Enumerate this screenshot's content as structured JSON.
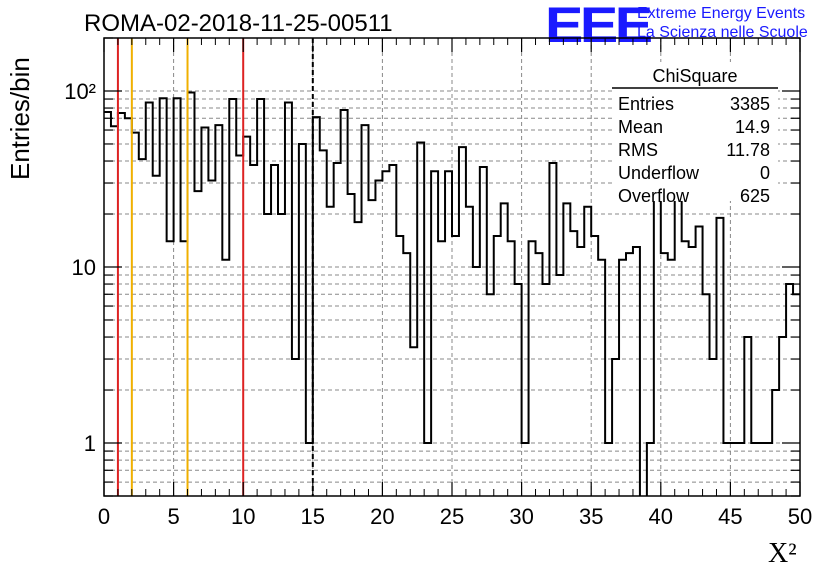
{
  "title": "ROMA-02-2018-11-25-00511",
  "logo": {
    "mark": "EEE",
    "line1": "Extreme Energy Events",
    "line2": "La Scienza nelle Scuole"
  },
  "stats": {
    "header": "ChiSquare",
    "rows": [
      {
        "label": "Entries",
        "value": "3385"
      },
      {
        "label": "Mean",
        "value": "14.9"
      },
      {
        "label": "RMS",
        "value": "11.78"
      },
      {
        "label": "Underflow",
        "value": "0"
      },
      {
        "label": "Overflow",
        "value": "625"
      }
    ]
  },
  "chart_data": {
    "type": "bar",
    "subtype": "histogram",
    "ylabel": "Entries/bin",
    "xlabel": "X²",
    "xlim": [
      0,
      50
    ],
    "ylim": [
      0.5,
      200
    ],
    "yscale": "log",
    "bin_width": 0.5,
    "x_ticks": [
      "0",
      "5",
      "10",
      "15",
      "20",
      "25",
      "30",
      "35",
      "40",
      "45",
      "50"
    ],
    "y_ticks": [
      "1",
      "10",
      "10²"
    ],
    "grid": true,
    "values": [
      76,
      63,
      75,
      70,
      58,
      41,
      86,
      33,
      91,
      14,
      91,
      14,
      98,
      27,
      62,
      31,
      64,
      11,
      90,
      43,
      55,
      38,
      90,
      20,
      38,
      20,
      86,
      3,
      50,
      1,
      71,
      46,
      22,
      39,
      78,
      26,
      18,
      64,
      24,
      31,
      35,
      38,
      15,
      12,
      3.5,
      51,
      1,
      35,
      14,
      35,
      15,
      48,
      22,
      10,
      37,
      7,
      15,
      23,
      14,
      8,
      1,
      14,
      12,
      8,
      39,
      9,
      23,
      16,
      13,
      22,
      15,
      11,
      1,
      3,
      11,
      12,
      13,
      0,
      1,
      25,
      12,
      11,
      27,
      14,
      13,
      17,
      7,
      3,
      19,
      1,
      1,
      1,
      4,
      1,
      1,
      1,
      2,
      4,
      8,
      7
    ],
    "vertical_lines": [
      {
        "x": 1,
        "color": "#dd2222",
        "style": "solid"
      },
      {
        "x": 2,
        "color": "#f0b000",
        "style": "solid"
      },
      {
        "x": 6,
        "color": "#f0b000",
        "style": "solid"
      },
      {
        "x": 10,
        "color": "#dd2222",
        "style": "solid"
      },
      {
        "x": 15,
        "color": "#000000",
        "style": "dashed"
      }
    ]
  }
}
